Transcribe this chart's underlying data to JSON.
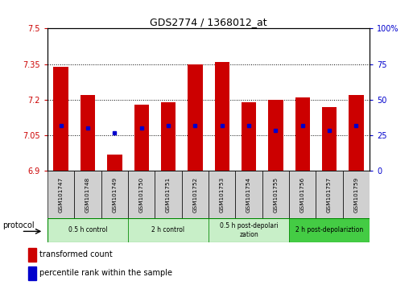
{
  "title": "GDS2774 / 1368012_at",
  "samples": [
    "GSM101747",
    "GSM101748",
    "GSM101749",
    "GSM101750",
    "GSM101751",
    "GSM101752",
    "GSM101753",
    "GSM101754",
    "GSM101755",
    "GSM101756",
    "GSM101757",
    "GSM101759"
  ],
  "bar_tops": [
    7.34,
    7.22,
    6.97,
    7.18,
    7.19,
    7.35,
    7.36,
    7.19,
    7.2,
    7.21,
    7.17,
    7.22
  ],
  "bar_base": 6.9,
  "percentile_vals": [
    7.09,
    7.08,
    7.06,
    7.08,
    7.09,
    7.09,
    7.09,
    7.09,
    7.07,
    7.09,
    7.07,
    7.09
  ],
  "ylim_left": [
    6.9,
    7.5
  ],
  "ylim_right": [
    0,
    100
  ],
  "yticks_left": [
    6.9,
    7.05,
    7.2,
    7.35,
    7.5
  ],
  "yticks_right": [
    0,
    25,
    50,
    75,
    100
  ],
  "ytick_labels_left": [
    "6.9",
    "7.05",
    "7.2",
    "7.35",
    "7.5"
  ],
  "ytick_labels_right": [
    "0",
    "25",
    "50",
    "75",
    "100%"
  ],
  "bar_color": "#cc0000",
  "percentile_color": "#0000cc",
  "bar_width": 0.55,
  "groups": [
    {
      "label": "0.5 h control",
      "start": 0,
      "end": 3,
      "color": "#c8efc8"
    },
    {
      "label": "2 h control",
      "start": 3,
      "end": 6,
      "color": "#c8efc8"
    },
    {
      "label": "0.5 h post-depolarization",
      "start": 6,
      "end": 9,
      "color": "#c8efc8"
    },
    {
      "label": "2 h post-depolariztion",
      "start": 9,
      "end": 12,
      "color": "#44cc44"
    }
  ],
  "protocol_label": "protocol",
  "legend_bar_label": "transformed count",
  "legend_pct_label": "percentile rank within the sample",
  "tick_color_left": "#cc0000",
  "tick_color_right": "#0000cc",
  "background_plot": "#ffffff",
  "background_xtick": "#d0d0d0",
  "group_border_color": "#008800"
}
